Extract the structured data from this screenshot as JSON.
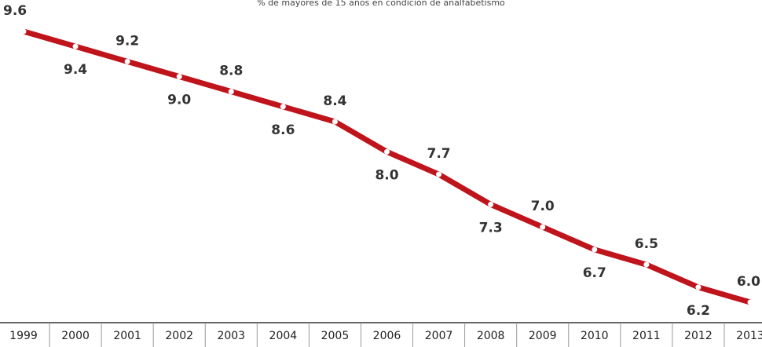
{
  "chart_data": {
    "type": "line",
    "title": "% de mayores de 15 años en condición de analfabetismo",
    "categories": [
      "1999",
      "2000",
      "2001",
      "2002",
      "2003",
      "2004",
      "2005",
      "2006",
      "2007",
      "2008",
      "2009",
      "2010",
      "2011",
      "2012",
      "2013"
    ],
    "series": [
      {
        "color": "#c0141c",
        "values": [
          9.6,
          9.4,
          9.2,
          9.0,
          8.8,
          8.6,
          8.4,
          8.0,
          7.7,
          7.3,
          7.0,
          6.7,
          6.5,
          6.2,
          6.0
        ],
        "value_labels": [
          "9.6",
          "9.4",
          "9.2",
          "9.0",
          "8.8",
          "8.6",
          "8.4",
          "8.0",
          "7.7",
          "7.3",
          "7.0",
          "6.7",
          "6.5",
          "6.2",
          "6.0"
        ]
      }
    ]
  }
}
